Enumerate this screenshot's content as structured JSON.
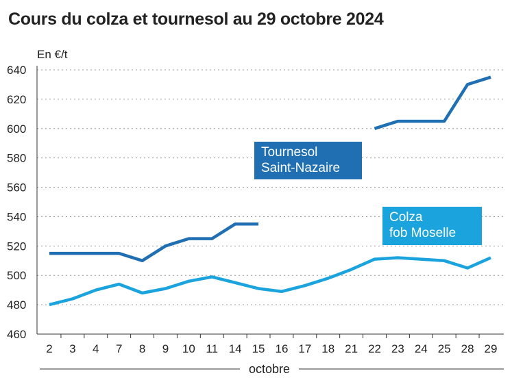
{
  "title": "Cours du colza et tournesol au 29 octobre 2024",
  "colors": {
    "tournesol": "#1f6fb2",
    "colza": "#1aa3dd",
    "grid": "#9a9a9a",
    "text": "#222222"
  },
  "chart_data": {
    "type": "line",
    "title": "Cours du colza et tournesol au 29 octobre 2024",
    "ylabel": "En €/t",
    "xlabel": "octobre",
    "ylim": [
      460,
      640
    ],
    "yticks": [
      460,
      480,
      500,
      520,
      540,
      560,
      580,
      600,
      620,
      640
    ],
    "grid": true,
    "categories": [
      "2",
      "3",
      "4",
      "7",
      "8",
      "9",
      "10",
      "11",
      "14",
      "15",
      "16",
      "17",
      "18",
      "21",
      "22",
      "23",
      "24",
      "25",
      "28",
      "29"
    ],
    "series": [
      {
        "name": "Tournesol Saint-Nazaire",
        "label_lines": [
          "Tournesol",
          "Saint-Nazaire"
        ],
        "color": "#1f6fb2",
        "values": [
          515,
          515,
          515,
          515,
          510,
          520,
          525,
          525,
          535,
          535,
          null,
          null,
          null,
          null,
          600,
          605,
          605,
          605,
          630,
          635
        ]
      },
      {
        "name": "Colza fob Moselle",
        "label_lines": [
          "Colza",
          "fob Moselle"
        ],
        "color": "#1aa3dd",
        "values": [
          480,
          484,
          490,
          494,
          488,
          491,
          496,
          499,
          495,
          491,
          489,
          493,
          498,
          504,
          511,
          512,
          511,
          510,
          505,
          512
        ]
      }
    ]
  }
}
